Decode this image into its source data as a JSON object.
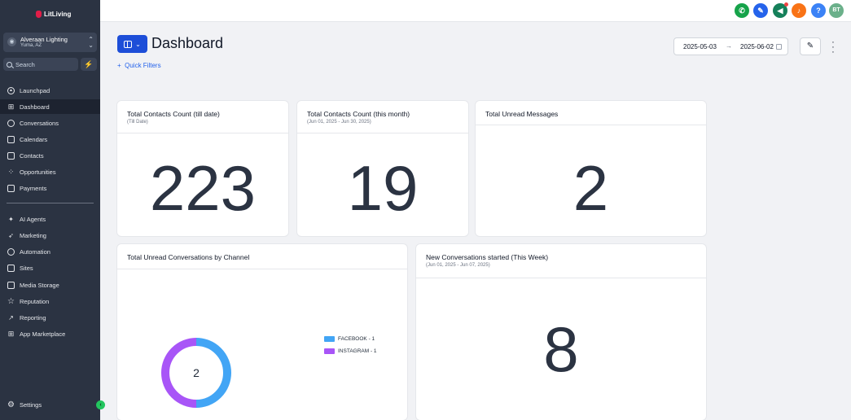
{
  "sidebar": {
    "logo_text": "LitLiving",
    "account": {
      "name": "Alveraan Lighting",
      "location": "Yuma, AZ"
    },
    "search_placeholder": "Search",
    "items": [
      {
        "label": "Launchpad"
      },
      {
        "label": "Dashboard"
      },
      {
        "label": "Conversations"
      },
      {
        "label": "Calendars"
      },
      {
        "label": "Contacts"
      },
      {
        "label": "Opportunities"
      },
      {
        "label": "Payments"
      },
      {
        "label": "AI Agents"
      },
      {
        "label": "Marketing"
      },
      {
        "label": "Automation"
      },
      {
        "label": "Sites"
      },
      {
        "label": "Media Storage"
      },
      {
        "label": "Reputation"
      },
      {
        "label": "Reporting"
      },
      {
        "label": "App Marketplace"
      }
    ],
    "settings_label": "Settings"
  },
  "topbar": {
    "avatar_initials": "BT",
    "icons": [
      {
        "name": "phone-icon",
        "color": "#16a34a"
      },
      {
        "name": "ticket-icon",
        "color": "#2563eb"
      },
      {
        "name": "megaphone-icon",
        "color": "#16805a"
      },
      {
        "name": "bell-icon",
        "color": "#f97316"
      },
      {
        "name": "help-icon",
        "color": "#3b82f6"
      }
    ],
    "avatar_color": "#6bb08a"
  },
  "header": {
    "title": "Dashboard",
    "quick_filters": "Quick Filters",
    "date_start": "2025-05-03",
    "date_end": "2025-06-02"
  },
  "cards": {
    "contacts_total": {
      "title": "Total Contacts Count (till date)",
      "subtitle": "(Till Date)",
      "value": "223"
    },
    "contacts_month": {
      "title": "Total Contacts Count (this month)",
      "subtitle": "(Jun 01, 2025 - Jun 30, 2025)",
      "value": "19"
    },
    "unread_messages": {
      "title": "Total Unread Messages",
      "value": "2"
    },
    "unread_by_channel": {
      "title": "Total Unread Conversations by Channel",
      "total": "2"
    },
    "new_conversations": {
      "title": "New Conversations started (This Week)",
      "subtitle": "(Jun 01, 2025 - Jun 07, 2025)",
      "value": "8"
    }
  },
  "chart_data": {
    "type": "pie",
    "labels": [
      "FACEBOOK",
      "INSTAGRAM"
    ],
    "values": [
      1,
      1
    ],
    "legend": [
      "FACEBOOK - 1",
      "INSTAGRAM - 1"
    ],
    "colors": [
      "#42a5f5",
      "#a855f7"
    ],
    "center_label": "2",
    "legend_position": "right"
  }
}
